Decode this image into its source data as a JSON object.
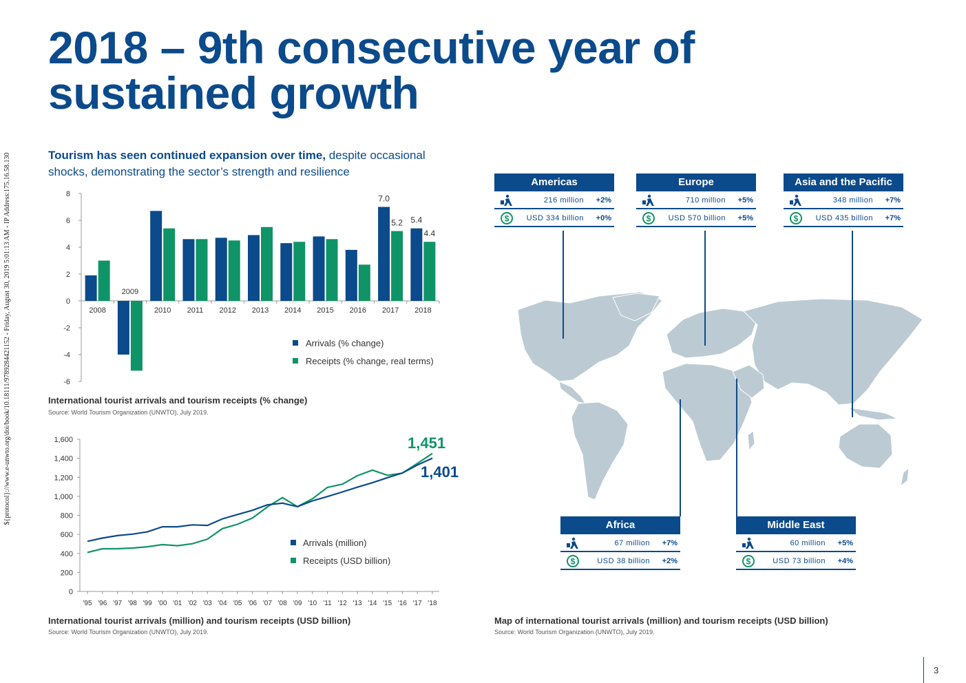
{
  "watermark": "${protocol}://www.e-unwto.org/doi/book/10.18111/9789284421152 - Friday, August 30, 2019 5:01:13 AM - IP Address:175.16.58.130",
  "title": "2018 – 9th consecutive year of sustained growth",
  "subtitle": {
    "bold": "Tourism has seen continued expansion over time,",
    "rest": " despite occasional shocks, demonstrating the sector’s strength and resilience"
  },
  "colors": {
    "arrivals": "#0b4a8b",
    "receipts": "#0f9467",
    "map": "#bccbd3"
  },
  "chart_data": [
    {
      "type": "bar",
      "title": "International tourist arrivals and tourism receipts (% change)",
      "source": "Source: World Tourism Organization (UNWTO), July 2019.",
      "categories": [
        "2008",
        "2009",
        "2010",
        "2011",
        "2012",
        "2013",
        "2014",
        "2015",
        "2016",
        "2017",
        "2018"
      ],
      "series": [
        {
          "name": "Arrivals (% change)",
          "values": [
            1.9,
            -4.0,
            6.7,
            4.6,
            4.7,
            4.9,
            4.3,
            4.8,
            3.8,
            7.0,
            5.4
          ]
        },
        {
          "name": "Receipts (% change, real terms)",
          "values": [
            3.0,
            -5.2,
            5.4,
            4.6,
            4.5,
            5.5,
            4.4,
            4.6,
            2.7,
            5.2,
            4.4
          ]
        }
      ],
      "yticks": [
        "8",
        "6",
        "4",
        "2",
        "0",
        "-2",
        "-4",
        "-6"
      ],
      "ylim": [
        -6,
        8
      ],
      "annotations": [
        "2009",
        "7.0",
        "5.2",
        "5.4",
        "4.4"
      ]
    },
    {
      "type": "line",
      "title": "International tourist arrivals (million) and tourism receipts (USD billion)",
      "source": "Source: World Tourism Organization (UNWTO), July 2019.",
      "x": [
        "'95",
        "'96",
        "'97",
        "'98",
        "'99",
        "'00",
        "'01",
        "'02",
        "'03",
        "'04",
        "'05",
        "'06",
        "'07",
        "'08",
        "'09",
        "'10",
        "'11",
        "'12",
        "'13",
        "'14",
        "'15",
        "'16",
        "'17",
        "'18"
      ],
      "series": [
        {
          "name": "Arrivals (million)",
          "values": [
            527,
            561,
            587,
            602,
            627,
            680,
            680,
            700,
            694,
            763,
            809,
            853,
            911,
            928,
            891,
            952,
            998,
            1046,
            1096,
            1143,
            1196,
            1245,
            1329,
            1401
          ]
        },
        {
          "name": "Receipts (USD billion)",
          "values": [
            410,
            449,
            449,
            456,
            470,
            492,
            481,
            502,
            550,
            660,
            706,
            772,
            889,
            987,
            891,
            974,
            1094,
            1128,
            1217,
            1276,
            1221,
            1244,
            1346,
            1451
          ]
        }
      ],
      "yticks": [
        "1,600",
        "1,400",
        "1,200",
        "1,000",
        "800",
        "600",
        "400",
        "200",
        "0"
      ],
      "ylim": [
        0,
        1600
      ],
      "end_labels": {
        "receipts": "1,451",
        "arrivals": "1,401"
      }
    }
  ],
  "map": {
    "caption": "Map of international tourist arrivals (million) and tourism receipts (USD billion)",
    "source": "Source: World Tourism Organization (UNWTO), July 2019.",
    "regions": [
      {
        "name": "Americas",
        "arrivals": "216 million",
        "arrivals_pct": "+2%",
        "receipts": "USD 334 billion",
        "receipts_pct": "+0%"
      },
      {
        "name": "Europe",
        "arrivals": "710 million",
        "arrivals_pct": "+5%",
        "receipts": "USD 570 billion",
        "receipts_pct": "+5%"
      },
      {
        "name": "Asia and the Pacific",
        "arrivals": "348 million",
        "arrivals_pct": "+7%",
        "receipts": "USD 435 billion",
        "receipts_pct": "+7%"
      },
      {
        "name": "Africa",
        "arrivals": "67 million",
        "arrivals_pct": "+7%",
        "receipts": "USD 38 billion",
        "receipts_pct": "+2%"
      },
      {
        "name": "Middle East",
        "arrivals": "60 million",
        "arrivals_pct": "+5%",
        "receipts": "USD 73 billion",
        "receipts_pct": "+4%"
      }
    ]
  },
  "page_number": "3"
}
